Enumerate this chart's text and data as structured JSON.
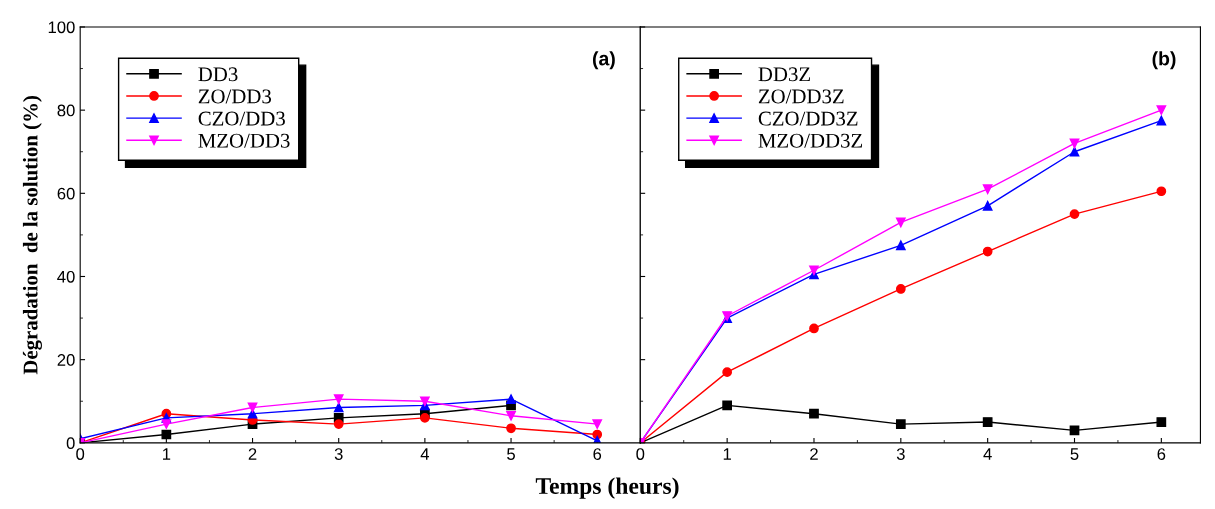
{
  "chart_data": [
    {
      "type": "line",
      "x": [
        0,
        1,
        2,
        3,
        4,
        5,
        6
      ],
      "xlim": [
        0,
        6.5
      ],
      "xticks": [
        0,
        1,
        2,
        3,
        4,
        5,
        6
      ],
      "ylim": [
        0,
        100
      ],
      "yticks": [
        0,
        20,
        40,
        60,
        80,
        100
      ],
      "xlabel": "Temps (heurs)",
      "ylabel": "Dégradation  de la solution (%)",
      "annotations": [
        "(a)"
      ],
      "legend": "top left",
      "grid": false,
      "line_style": "solid",
      "series": [
        {
          "name": "DD3",
          "color": "#000000",
          "marker": "square",
          "values": [
            0,
            2,
            4.5,
            6,
            7,
            9,
            null
          ]
        },
        {
          "name": "ZO/DD3",
          "color": "#ff0000",
          "marker": "circle",
          "values": [
            0,
            7,
            5.5,
            4.5,
            6,
            3.5,
            2
          ]
        },
        {
          "name": "CZO/DD3",
          "color": "#0000ff",
          "marker": "triangle",
          "values": [
            1,
            6,
            7,
            8.5,
            9,
            10.5,
            0.5
          ]
        },
        {
          "name": "MZO/DD3",
          "color": "#ff00ff",
          "marker": "triangle_down",
          "values": [
            0,
            4.5,
            8.5,
            10.5,
            10,
            6.5,
            4.5
          ]
        }
      ]
    },
    {
      "type": "line",
      "x": [
        0,
        1,
        2,
        3,
        4,
        5,
        6
      ],
      "xlim": [
        0,
        6.45
      ],
      "xticks": [
        0,
        1,
        2,
        3,
        4,
        5,
        6
      ],
      "ylim": [
        0,
        100
      ],
      "yticks": [
        {
          "value": 0,
          "label": null
        },
        {
          "value": 20,
          "label": null
        },
        {
          "value": 40,
          "label": null
        },
        {
          "value": 60,
          "label": null
        },
        {
          "value": 80,
          "label": null
        },
        {
          "value": 100,
          "label": null
        }
      ],
      "tick_labels": "x",
      "annotations": [
        "(b)"
      ],
      "legend": "top left",
      "grid": false,
      "line_style": "solid",
      "series": [
        {
          "name": "DD3Z",
          "color": "#000000",
          "marker": "square",
          "values": [
            0,
            9,
            7,
            4.5,
            5,
            3,
            5
          ]
        },
        {
          "name": "ZO/DD3Z",
          "color": "#ff0000",
          "marker": "circle",
          "values": [
            0,
            17,
            27.5,
            37,
            46,
            55,
            60.5
          ]
        },
        {
          "name": "CZO/DD3Z",
          "color": "#0000ff",
          "marker": "triangle",
          "values": [
            0,
            30,
            40.5,
            47.5,
            57,
            70,
            77.5
          ]
        },
        {
          "name": "MZO/DD3Z",
          "color": "#ff00ff",
          "marker": "triangle_down",
          "values": [
            0,
            30.5,
            41.5,
            53,
            61,
            72,
            80
          ]
        }
      ]
    }
  ]
}
